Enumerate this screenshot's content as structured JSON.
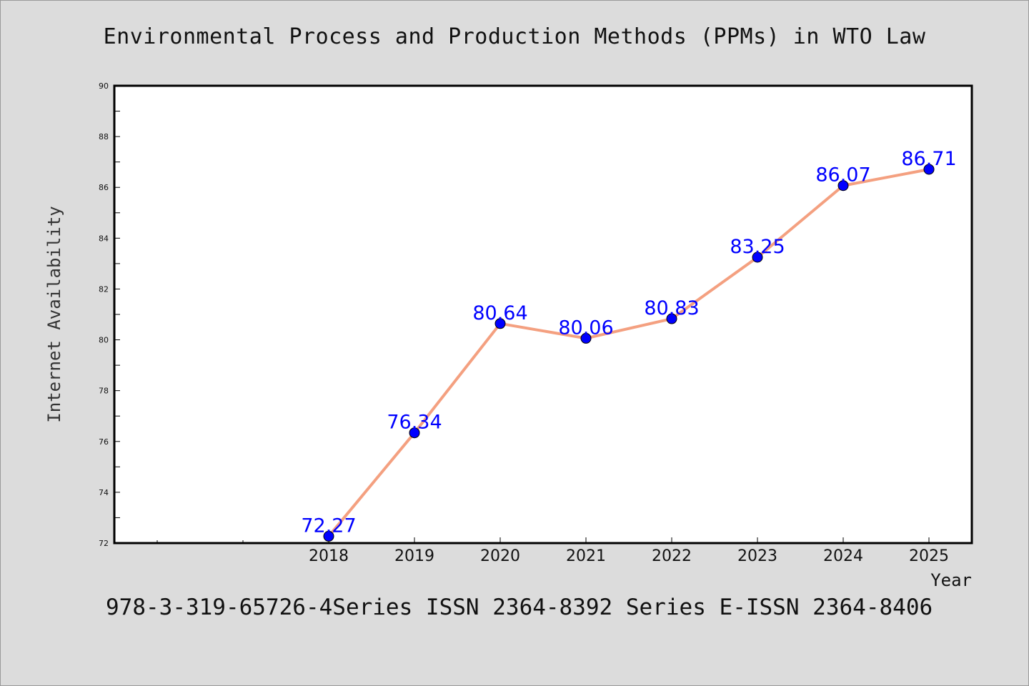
{
  "page": {
    "footer": "978-3-319-65726-4Series ISSN 2364-8392 Series E-ISSN 2364-8406"
  },
  "chart_data": {
    "type": "line",
    "title": "Environmental Process and Production Methods (PPMs) in WTO Law",
    "xlabel": "Year",
    "ylabel": "Internet Availability",
    "categories": [
      "2018",
      "2019",
      "2020",
      "2021",
      "2022",
      "2023",
      "2024",
      "2025"
    ],
    "series": [
      {
        "values": [
          72.27,
          76.34,
          80.64,
          80.06,
          80.83,
          83.25,
          86.07,
          86.71
        ],
        "line_color": "#f4a080",
        "marker_color": "#0000ff"
      }
    ],
    "data_labels": [
      "72.27",
      "76.34",
      "80.64",
      "80.06",
      "80.83",
      "83.25",
      "86.07",
      "86.71"
    ],
    "ylim": [
      72,
      90
    ],
    "yticks": [
      "72",
      "74",
      "76",
      "78",
      "80",
      "82",
      "84",
      "86",
      "88",
      "90"
    ],
    "label_color": "#0000ff",
    "plot_background": "#ffffff",
    "grid": false
  }
}
